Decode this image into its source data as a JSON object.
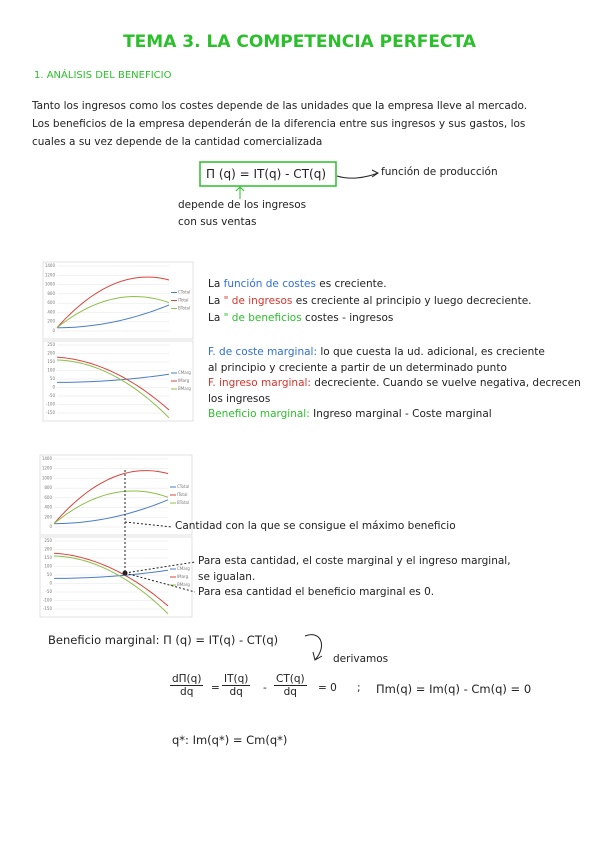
{
  "header": {
    "title": "TEMA 3. LA COMPETENCIA PERFECTA",
    "section": "1. ANÁLISIS DEL BENEFICIO"
  },
  "intro": {
    "lines": [
      "Tanto los ingresos como los costes depende de las unidades que la empresa lleve al mercado.",
      "Los beneficios de la empresa dependerán de la diferencia entre sus ingresos y sus gastos, los",
      "cuales a su vez depende de la cantidad comercializada"
    ],
    "formula": "Π (q) = IT(q) - CT(q)",
    "formula_note": "función de producción",
    "note_lines": [
      "depende de los ingresos",
      "con sus ventas"
    ]
  },
  "mini_charts": {
    "total": {
      "yticks": [
        "1400",
        "1200",
        "1000",
        "800",
        "600",
        "400",
        "200",
        "0"
      ],
      "legend": [
        "CTotal",
        "ITotal",
        "BTotal"
      ]
    },
    "marginal": {
      "yticks": [
        "250",
        "200",
        "150",
        "100",
        "50",
        "0",
        "-50",
        "-100",
        "-150"
      ],
      "legend": [
        "CMarg",
        "IMarg",
        "BMarg"
      ]
    }
  },
  "block1": {
    "lines": [
      [
        "La ",
        "función de costes",
        " es creciente."
      ],
      [
        "La ",
        "\"   de ingresos",
        " es creciente al principio y luego decreciente."
      ],
      [
        "La ",
        "\"   de beneficios",
        " costes - ingresos"
      ]
    ],
    "marginal_lines": [
      [
        "F. de coste marginal:",
        " lo que cuesta la ud. adicional, es creciente"
      ],
      [
        "",
        "al principio y creciente a partir de un determinado punto"
      ],
      [
        "F. ingreso marginal:",
        " decreciente. Cuando se vuelve negativa, decrecen"
      ],
      [
        "",
        "los ingresos"
      ],
      [
        "Beneficio marginal:",
        " Ingreso marginal - Coste marginal"
      ]
    ]
  },
  "block2": {
    "max_line": "Cantidad con la que se consigue el máximo beneficio",
    "lines": [
      "Para esta cantidad, el coste marginal y el ingreso marginal,",
      "se igualan.",
      "Para esa cantidad el beneficio marginal es 0."
    ]
  },
  "derivation": {
    "line1": "Beneficio marginal:  Π (q) = IT(q) - CT(q)",
    "derivamos": "derivamos",
    "frac1": [
      "dΠ(q)",
      "dq"
    ],
    "eq1": "=",
    "frac2": [
      "IT(q)",
      "dq"
    ],
    "minus": "-",
    "frac3": [
      "CT(q)",
      "dq"
    ],
    "eq_zero": "= 0",
    "sep": ";",
    "marginal_eq": "Πm(q) = Im(q) - Cm(q) = 0",
    "optimum": "q*:  Im(q*) = Cm(q*)"
  }
}
